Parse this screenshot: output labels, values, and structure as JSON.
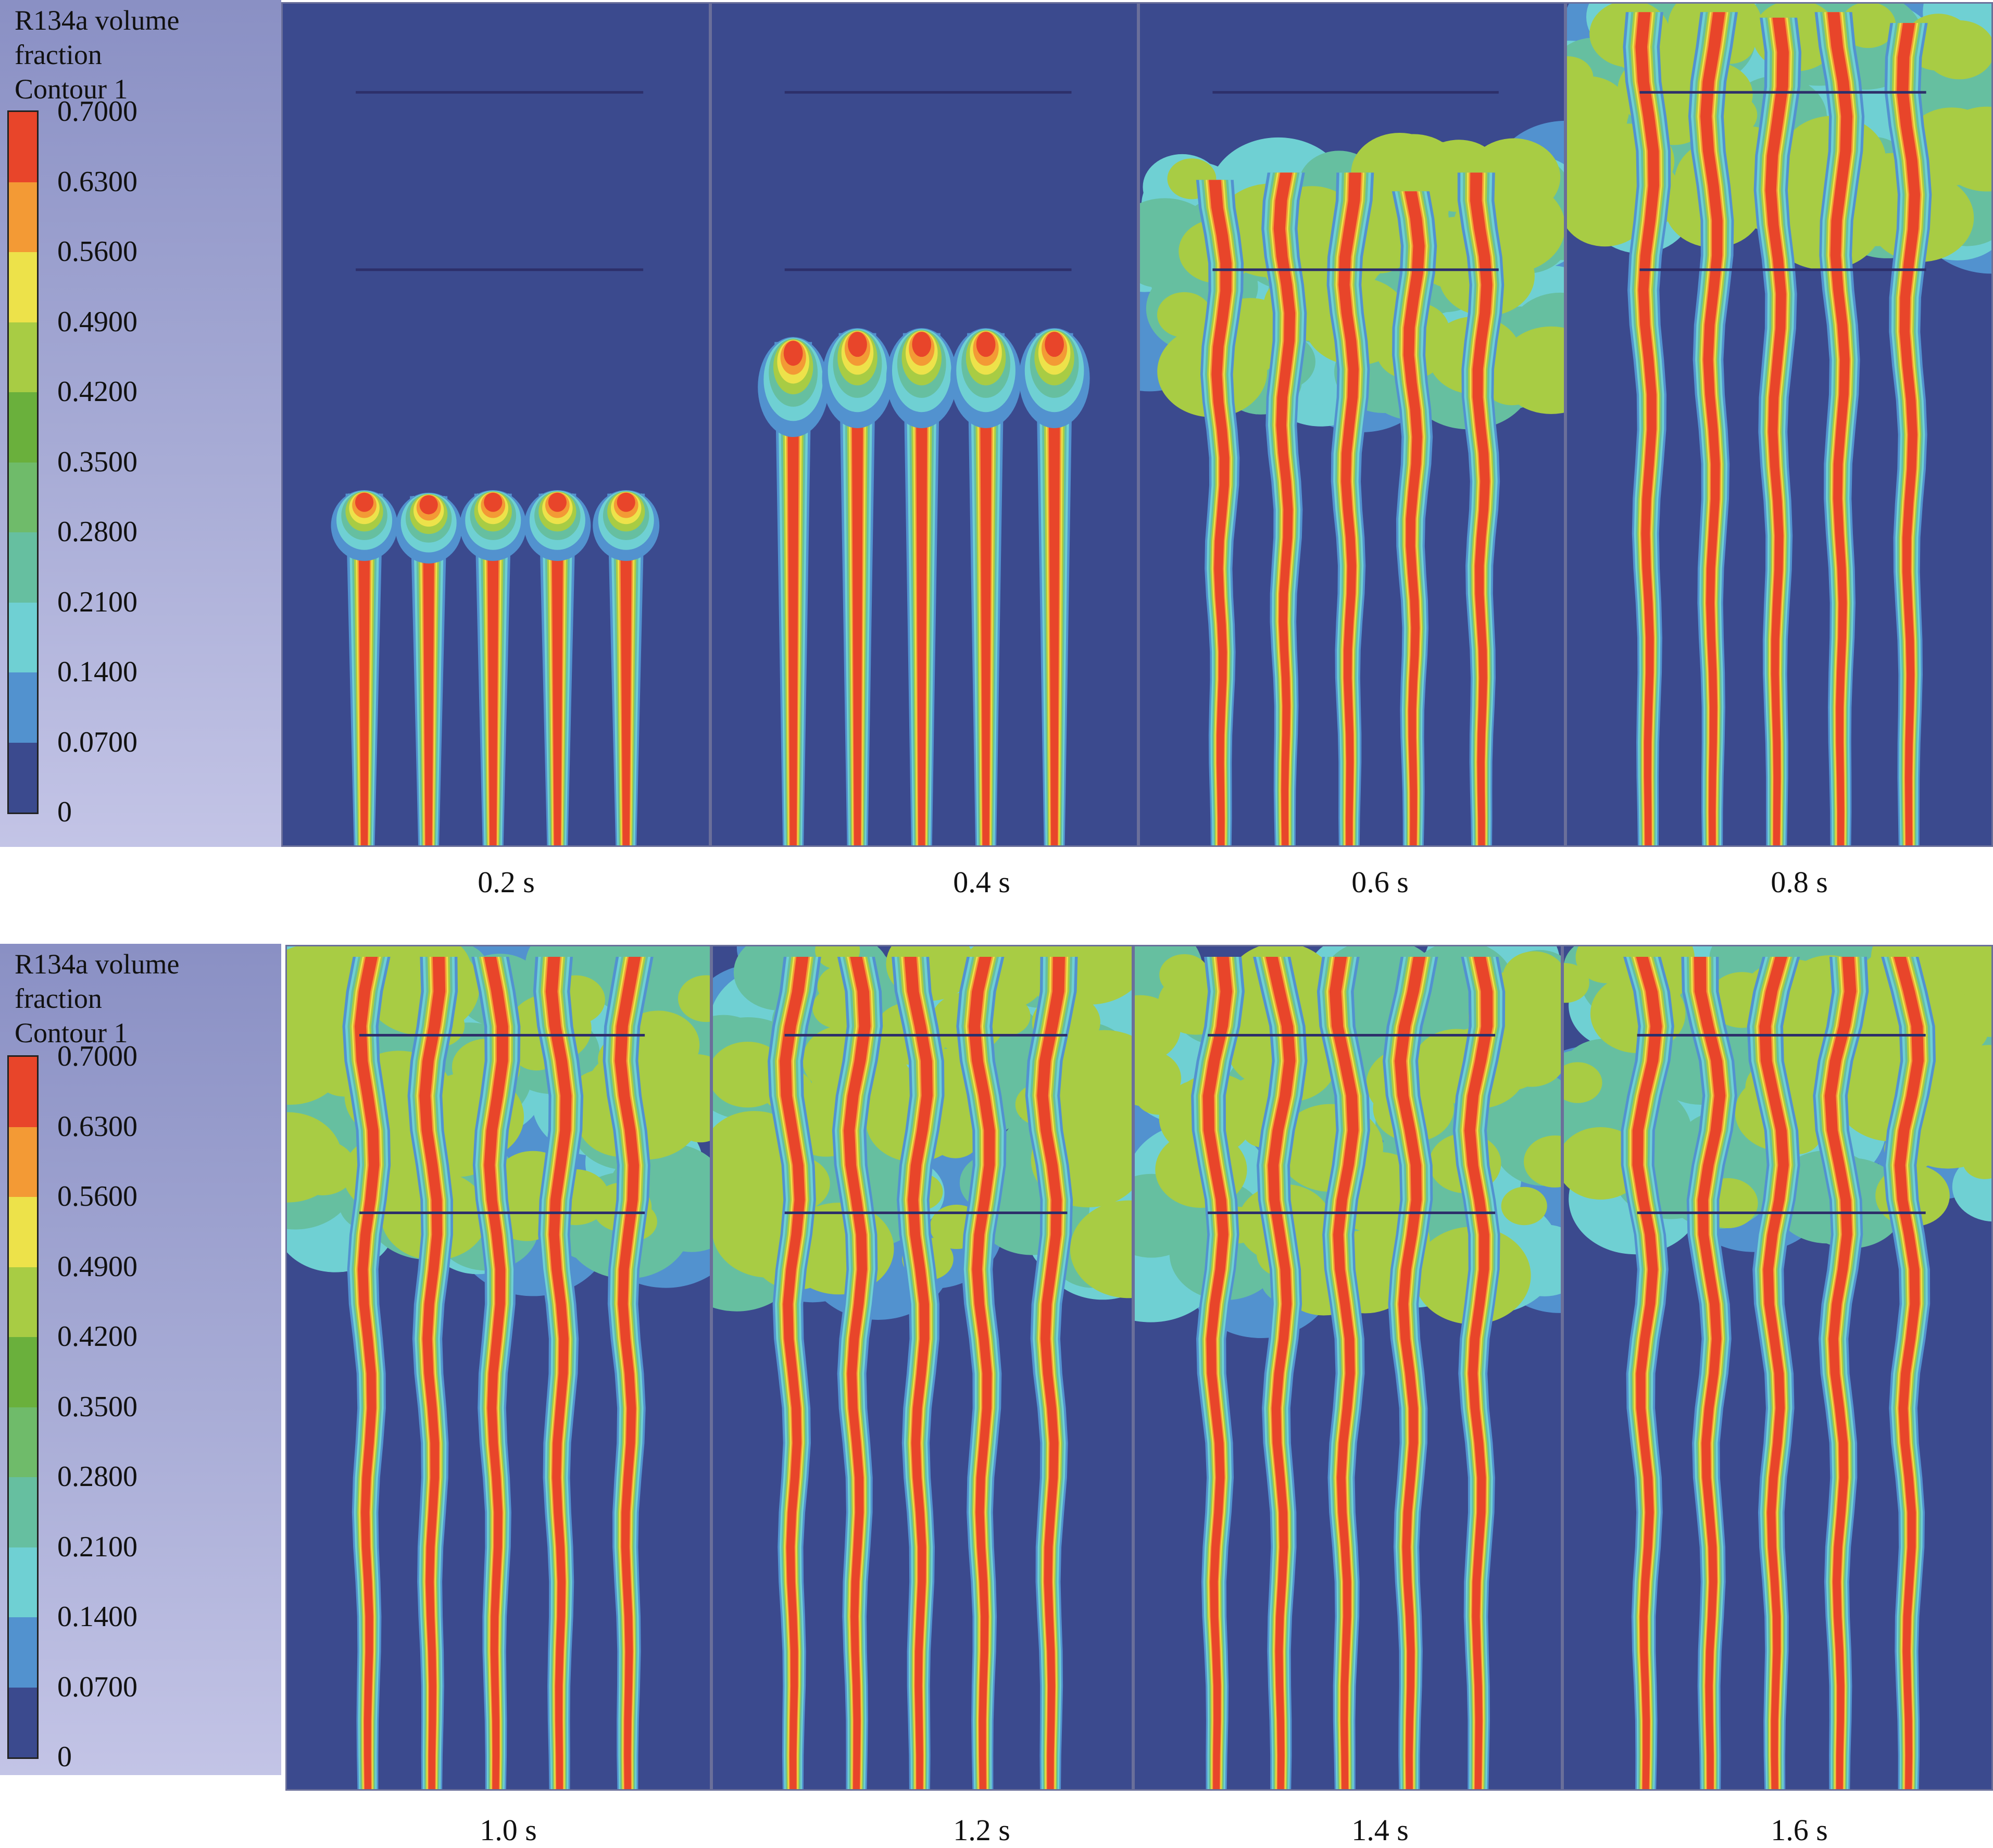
{
  "legends": [
    {
      "title_lines": [
        "R134a volume",
        "fraction",
        "Contour 1"
      ]
    },
    {
      "title_lines": [
        "R134a volume",
        "fraction",
        "Contour 1"
      ]
    }
  ],
  "colorbar": {
    "ticks": [
      "0.7000",
      "0.6300",
      "0.5600",
      "0.4900",
      "0.4200",
      "0.3500",
      "0.2800",
      "0.2100",
      "0.1400",
      "0.0700",
      "0"
    ],
    "band_colors": [
      "#e8452a",
      "#f39a35",
      "#ede24a",
      "#a8cc44",
      "#6ab03c",
      "#6fbb6a",
      "#66bfa0",
      "#6fd0d3",
      "#5292cf",
      "#3b4a8e"
    ]
  },
  "panels": [
    {
      "time": "0.2 s",
      "stage": 0.2
    },
    {
      "time": "0.4 s",
      "stage": 0.4
    },
    {
      "time": "0.6 s",
      "stage": 0.6
    },
    {
      "time": "0.8 s",
      "stage": 0.8
    },
    {
      "time": "1.0 s",
      "stage": 1.0
    },
    {
      "time": "1.2 s",
      "stage": 1.2
    },
    {
      "time": "1.4 s",
      "stage": 1.4
    },
    {
      "time": "1.6 s",
      "stage": 1.6
    }
  ],
  "colors": {
    "background_field": "#3b4a8e",
    "level_line": "#2d2f6a"
  }
}
